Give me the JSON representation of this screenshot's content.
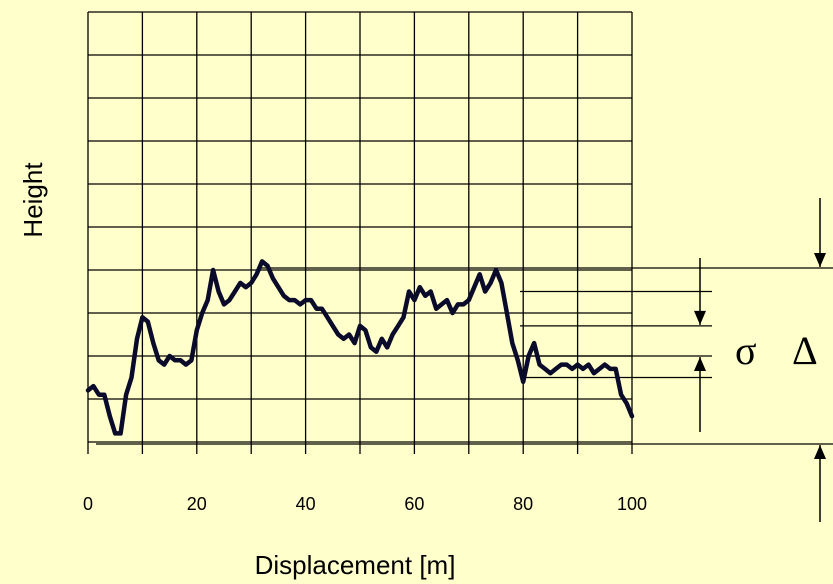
{
  "chart_data": {
    "type": "line",
    "title": "",
    "xlabel": "Displacement [m]",
    "ylabel": "Height",
    "xlim": [
      0,
      100
    ],
    "ylim": [
      0,
      10
    ],
    "grid": true,
    "x_ticks": [
      "0",
      "20",
      "40",
      "60",
      "80",
      "100"
    ],
    "series": [
      {
        "name": "",
        "color": "#0A0A2A",
        "x": [
          0,
          1,
          2,
          3,
          4,
          5,
          6,
          7,
          8,
          9,
          10,
          11,
          12,
          13,
          14,
          15,
          16,
          17,
          18,
          19,
          20,
          21,
          22,
          23,
          24,
          25,
          26,
          27,
          28,
          29,
          30,
          31,
          32,
          33,
          34,
          35,
          36,
          37,
          38,
          39,
          40,
          41,
          42,
          43,
          44,
          45,
          46,
          47,
          48,
          49,
          50,
          51,
          52,
          53,
          54,
          55,
          56,
          57,
          58,
          59,
          60,
          61,
          62,
          63,
          64,
          65,
          66,
          67,
          68,
          69,
          70,
          71,
          72,
          73,
          74,
          75,
          76,
          77,
          78,
          79,
          80,
          81,
          82,
          83,
          84,
          85,
          86,
          87,
          88,
          89,
          90,
          91,
          92,
          93,
          94,
          95,
          96,
          97,
          98,
          99,
          100
        ],
        "y": [
          1.2,
          1.3,
          1.1,
          1.1,
          0.6,
          0.2,
          0.2,
          1.1,
          1.5,
          2.4,
          2.9,
          2.8,
          2.3,
          1.9,
          1.8,
          2.0,
          1.9,
          1.9,
          1.8,
          1.9,
          2.6,
          3.0,
          3.3,
          4.0,
          3.5,
          3.2,
          3.3,
          3.5,
          3.7,
          3.6,
          3.7,
          3.9,
          4.2,
          4.1,
          3.8,
          3.6,
          3.4,
          3.3,
          3.3,
          3.2,
          3.3,
          3.3,
          3.1,
          3.1,
          2.9,
          2.7,
          2.5,
          2.4,
          2.5,
          2.3,
          2.7,
          2.6,
          2.2,
          2.1,
          2.4,
          2.2,
          2.5,
          2.7,
          2.9,
          3.5,
          3.3,
          3.6,
          3.4,
          3.5,
          3.1,
          3.2,
          3.3,
          3.0,
          3.2,
          3.2,
          3.3,
          3.6,
          3.9,
          3.5,
          3.7,
          4.0,
          3.7,
          3.0,
          2.3,
          1.9,
          1.4,
          2.0,
          2.3,
          1.8,
          1.7,
          1.6,
          1.7,
          1.8,
          1.8,
          1.7,
          1.8,
          1.7,
          1.8,
          1.6,
          1.7,
          1.8,
          1.7,
          1.7,
          1.1,
          0.9,
          0.6
        ]
      }
    ],
    "annotations": {
      "sigma_symbol": "σ",
      "delta_symbol": "Δ",
      "sigma_band": [
        2.0,
        2.7
      ],
      "sigma_outer": [
        1.5,
        3.5
      ],
      "delta_band": [
        0.0,
        4.0
      ]
    }
  }
}
